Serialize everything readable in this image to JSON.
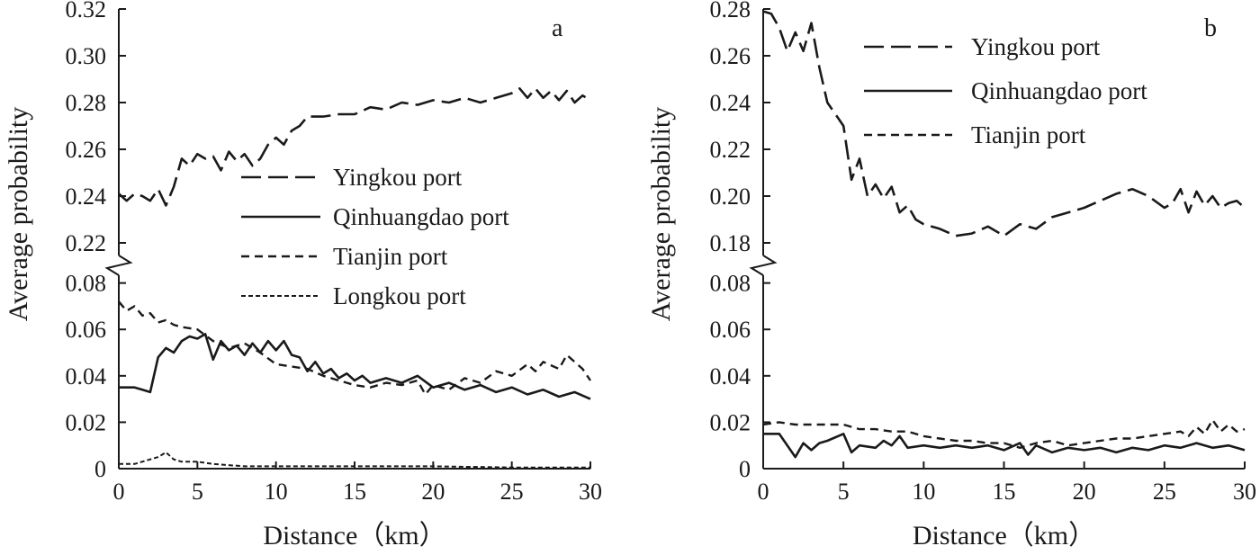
{
  "chart_data": [
    {
      "type": "line",
      "panel_label": "a",
      "xlabel": "Distance（km）",
      "ylabel": "Average probability",
      "xlim": [
        0,
        30
      ],
      "x_ticks": [
        "0",
        "5",
        "10",
        "15",
        "20",
        "25",
        "30"
      ],
      "y_axis_break": true,
      "upper_segment": {
        "ylim": [
          0.21,
          0.32
        ],
        "ticks": [
          "0.22",
          "0.24",
          "0.26",
          "0.28",
          "0.30",
          "0.32"
        ]
      },
      "lower_segment": {
        "ylim": [
          0,
          0.088
        ],
        "ticks": [
          "0",
          "0.02",
          "0.04",
          "0.06",
          "0.08"
        ]
      },
      "legend_position": "center",
      "series": [
        {
          "name": "Yingkou port",
          "style": "long-dash",
          "segment": "upper",
          "x": [
            0,
            0.5,
            1,
            1.5,
            2,
            2.5,
            3,
            3.5,
            4,
            4.5,
            5,
            5.5,
            6,
            6.5,
            7,
            7.5,
            8,
            8.5,
            9,
            9.5,
            10,
            10.5,
            11,
            11.5,
            12,
            13,
            14,
            15,
            16,
            17,
            18,
            19,
            20,
            21,
            22,
            23,
            24,
            25,
            25.5,
            26,
            26.5,
            27,
            27.5,
            28,
            28.5,
            29,
            29.5,
            30
          ],
          "y": [
            0.241,
            0.238,
            0.241,
            0.24,
            0.238,
            0.243,
            0.236,
            0.244,
            0.256,
            0.253,
            0.258,
            0.256,
            0.257,
            0.251,
            0.259,
            0.255,
            0.258,
            0.253,
            0.256,
            0.262,
            0.265,
            0.262,
            0.268,
            0.27,
            0.274,
            0.274,
            0.275,
            0.275,
            0.278,
            0.277,
            0.28,
            0.279,
            0.281,
            0.28,
            0.282,
            0.28,
            0.282,
            0.284,
            0.286,
            0.282,
            0.286,
            0.282,
            0.285,
            0.281,
            0.285,
            0.28,
            0.283,
            0.281
          ]
        },
        {
          "name": "Qinhuangdao port",
          "style": "solid",
          "segment": "lower",
          "x": [
            0,
            1,
            1.5,
            2,
            2.5,
            3,
            3.5,
            4,
            4.5,
            5,
            5.5,
            6,
            6.5,
            7,
            7.5,
            8,
            8.5,
            9,
            9.5,
            10,
            10.5,
            11,
            11.5,
            12,
            12.5,
            13,
            13.5,
            14,
            14.5,
            15,
            15.5,
            16,
            17,
            18,
            19,
            20,
            21,
            22,
            23,
            24,
            25,
            26,
            27,
            28,
            29,
            30
          ],
          "y": [
            0.035,
            0.035,
            0.034,
            0.033,
            0.048,
            0.052,
            0.05,
            0.055,
            0.057,
            0.056,
            0.058,
            0.047,
            0.055,
            0.051,
            0.053,
            0.049,
            0.054,
            0.05,
            0.055,
            0.051,
            0.055,
            0.049,
            0.048,
            0.042,
            0.046,
            0.041,
            0.043,
            0.039,
            0.041,
            0.038,
            0.04,
            0.037,
            0.039,
            0.037,
            0.04,
            0.035,
            0.037,
            0.034,
            0.036,
            0.033,
            0.035,
            0.032,
            0.034,
            0.031,
            0.033,
            0.03
          ]
        },
        {
          "name": "Tianjin port",
          "style": "short-dash",
          "segment": "lower",
          "x": [
            0,
            0.5,
            1,
            1.5,
            2,
            2.5,
            3,
            3.5,
            4,
            5,
            6,
            7,
            8,
            9,
            10,
            11,
            12,
            13,
            14,
            15,
            16,
            17,
            18,
            19,
            19.5,
            20,
            21,
            22,
            23,
            24,
            25,
            26,
            26.5,
            27,
            28,
            28.5,
            29,
            29.5,
            30
          ],
          "y": [
            0.072,
            0.068,
            0.07,
            0.066,
            0.067,
            0.063,
            0.064,
            0.062,
            0.061,
            0.06,
            0.055,
            0.052,
            0.054,
            0.05,
            0.045,
            0.044,
            0.043,
            0.04,
            0.038,
            0.036,
            0.035,
            0.037,
            0.036,
            0.038,
            0.032,
            0.036,
            0.034,
            0.039,
            0.037,
            0.042,
            0.04,
            0.045,
            0.042,
            0.046,
            0.043,
            0.049,
            0.046,
            0.043,
            0.038
          ]
        },
        {
          "name": "Longkou port",
          "style": "fine-dash",
          "segment": "lower",
          "x": [
            0,
            1,
            2,
            2.5,
            3,
            3.5,
            4,
            5,
            6,
            8,
            10,
            15,
            20,
            25,
            30
          ],
          "y": [
            0.002,
            0.002,
            0.004,
            0.005,
            0.007,
            0.004,
            0.003,
            0.003,
            0.002,
            0.001,
            0.001,
            0.001,
            0.001,
            0.0005,
            0.0005
          ]
        }
      ]
    },
    {
      "type": "line",
      "panel_label": "b",
      "xlabel": "Distance（km）",
      "ylabel": "Average probability",
      "xlim": [
        0,
        30
      ],
      "x_ticks": [
        "0",
        "5",
        "10",
        "15",
        "20",
        "25",
        "30"
      ],
      "y_axis_break": true,
      "upper_segment": {
        "ylim": [
          0.17,
          0.28
        ],
        "ticks": [
          "0.18",
          "0.20",
          "0.22",
          "0.24",
          "0.26",
          "0.28"
        ]
      },
      "lower_segment": {
        "ylim": [
          0,
          0.088
        ],
        "ticks": [
          "0",
          "0.02",
          "0.04",
          "0.06",
          "0.08"
        ]
      },
      "legend_position": "top-center",
      "series": [
        {
          "name": "Yingkou port",
          "style": "long-dash",
          "segment": "upper",
          "x": [
            0,
            0.5,
            1,
            1.5,
            2,
            2.5,
            3,
            3.5,
            4,
            4.5,
            5,
            5.5,
            6,
            6.5,
            7,
            7.5,
            8,
            8.5,
            9,
            9.5,
            10,
            11,
            12,
            13,
            14,
            15,
            16,
            17,
            18,
            19,
            20,
            21,
            22,
            23,
            24,
            25,
            25.5,
            26,
            26.5,
            27,
            27.5,
            28,
            28.5,
            29,
            29.5,
            30
          ],
          "y": [
            0.279,
            0.278,
            0.272,
            0.262,
            0.27,
            0.262,
            0.274,
            0.255,
            0.24,
            0.235,
            0.23,
            0.207,
            0.216,
            0.2,
            0.205,
            0.199,
            0.204,
            0.193,
            0.196,
            0.19,
            0.188,
            0.186,
            0.183,
            0.184,
            0.187,
            0.183,
            0.188,
            0.186,
            0.191,
            0.193,
            0.195,
            0.198,
            0.201,
            0.203,
            0.2,
            0.195,
            0.197,
            0.203,
            0.193,
            0.202,
            0.196,
            0.2,
            0.195,
            0.197,
            0.198,
            0.195
          ]
        },
        {
          "name": "Qinhuangdao port",
          "style": "solid",
          "segment": "lower",
          "x": [
            0,
            1,
            1.5,
            2,
            2.5,
            3,
            3.5,
            4,
            5,
            5.5,
            6,
            7,
            7.5,
            8,
            8.5,
            9,
            10,
            11,
            12,
            13,
            14,
            15,
            16,
            16.5,
            17,
            18,
            19,
            20,
            21,
            22,
            23,
            24,
            25,
            26,
            27,
            28,
            29,
            30
          ],
          "y": [
            0.015,
            0.015,
            0.01,
            0.005,
            0.011,
            0.008,
            0.011,
            0.012,
            0.015,
            0.007,
            0.01,
            0.009,
            0.012,
            0.01,
            0.014,
            0.009,
            0.01,
            0.009,
            0.01,
            0.009,
            0.01,
            0.008,
            0.011,
            0.006,
            0.01,
            0.007,
            0.009,
            0.008,
            0.009,
            0.007,
            0.009,
            0.008,
            0.01,
            0.009,
            0.011,
            0.009,
            0.01,
            0.008
          ]
        },
        {
          "name": "Tianjin port",
          "style": "short-dash",
          "segment": "lower",
          "x": [
            0,
            1,
            2,
            3,
            4,
            5,
            6,
            7,
            8,
            9,
            10,
            11,
            12,
            13,
            14,
            15,
            16,
            17,
            18,
            19,
            20,
            21,
            22,
            23,
            24,
            25,
            26,
            26.5,
            27,
            27.5,
            28,
            28.5,
            29,
            29.5,
            30
          ],
          "y": [
            0.019,
            0.02,
            0.019,
            0.019,
            0.019,
            0.019,
            0.017,
            0.017,
            0.016,
            0.016,
            0.014,
            0.013,
            0.012,
            0.012,
            0.011,
            0.011,
            0.009,
            0.011,
            0.012,
            0.01,
            0.011,
            0.012,
            0.013,
            0.013,
            0.014,
            0.015,
            0.016,
            0.014,
            0.018,
            0.015,
            0.021,
            0.016,
            0.019,
            0.016,
            0.017
          ]
        }
      ]
    }
  ]
}
